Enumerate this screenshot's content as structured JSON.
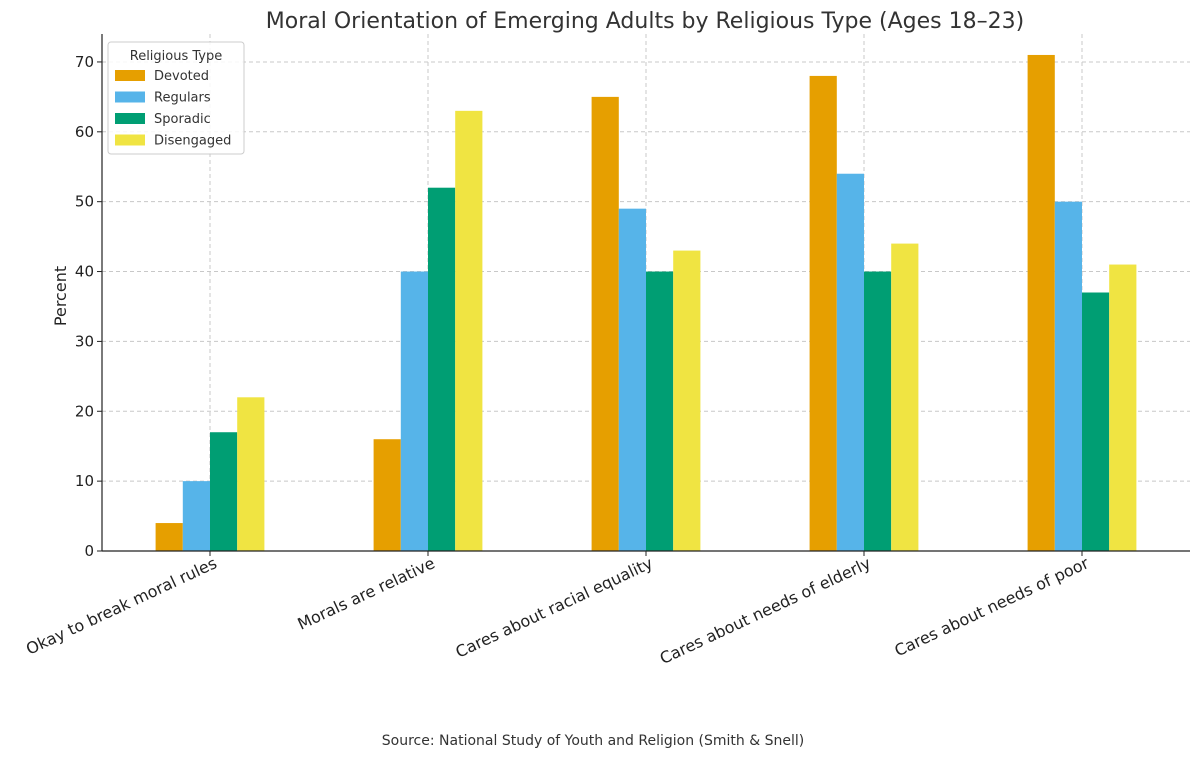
{
  "chart_data": {
    "type": "bar",
    "title": "Moral Orientation of Emerging Adults by Religious Type (Ages 18–23)",
    "xlabel": "",
    "ylabel": "Percent",
    "ylim": [
      0,
      74
    ],
    "yticks": [
      0,
      10,
      20,
      30,
      40,
      50,
      60,
      70
    ],
    "grid": true,
    "legend_title": "Religious Type",
    "legend_position": "top-left",
    "categories": [
      "Okay to break moral rules",
      "Morals are relative",
      "Cares about racial equality",
      "Cares about needs of elderly",
      "Cares about needs of poor"
    ],
    "series": [
      {
        "name": "Devoted",
        "color": "#E69F00",
        "values": [
          4,
          16,
          65,
          68,
          71
        ]
      },
      {
        "name": "Regulars",
        "color": "#56B4E9",
        "values": [
          10,
          40,
          49,
          54,
          50
        ]
      },
      {
        "name": "Sporadic",
        "color": "#009E73",
        "values": [
          17,
          52,
          40,
          40,
          37
        ]
      },
      {
        "name": "Disengaged",
        "color": "#F0E442",
        "values": [
          22,
          63,
          43,
          44,
          41
        ]
      }
    ],
    "source": "Source: National Study of Youth and Religion (Smith & Snell)"
  }
}
